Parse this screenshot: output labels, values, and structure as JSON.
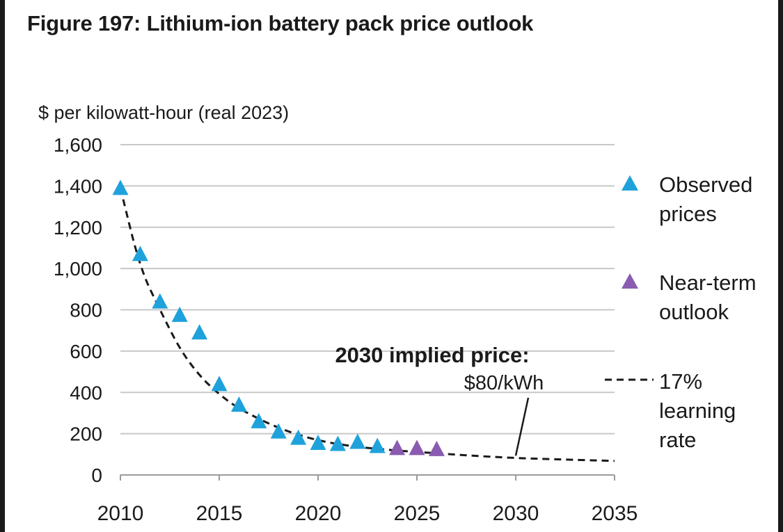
{
  "title": "Figure 197: Lithium-ion battery pack price outlook",
  "chart_data": {
    "type": "scatter",
    "ylabel": "$ per kilowatt-hour (real 2023)",
    "xlabel": "",
    "xlim": [
      2010,
      2035
    ],
    "ylim": [
      0,
      1600
    ],
    "x_ticks": [
      2010,
      2015,
      2020,
      2025,
      2030,
      2035
    ],
    "y_ticks": [
      0,
      200,
      400,
      600,
      800,
      1000,
      1200,
      1400,
      1600
    ],
    "y_tick_labels": [
      "0",
      "200",
      "400",
      "600",
      "800",
      "1,000",
      "1,200",
      "1,400",
      "1,600"
    ],
    "grid": "horizontal",
    "legend_position": "right",
    "series": [
      {
        "name": "Observed prices",
        "legend_lines": [
          "Observed",
          "prices"
        ],
        "marker": "triangle",
        "color": "#1fa2dc",
        "x": [
          2010,
          2011,
          2012,
          2013,
          2014,
          2015,
          2016,
          2017,
          2018,
          2019,
          2020,
          2021,
          2022,
          2023
        ],
        "y": [
          1390,
          1070,
          840,
          775,
          690,
          440,
          340,
          260,
          210,
          180,
          155,
          150,
          160,
          140
        ]
      },
      {
        "name": "Near-term outlook",
        "legend_lines": [
          "Near-term",
          "outlook"
        ],
        "marker": "triangle",
        "color": "#8a5bb0",
        "x": [
          2024,
          2025,
          2026
        ],
        "y": [
          130,
          130,
          125
        ]
      },
      {
        "name": "17% learning rate",
        "legend_lines": [
          "17%",
          "learning",
          "rate"
        ],
        "style": "dashed",
        "color": "#1a1a1a",
        "x": [
          2010,
          2011,
          2012,
          2013,
          2014,
          2015,
          2016,
          2018,
          2020,
          2022,
          2024,
          2026,
          2028,
          2030,
          2032,
          2035
        ],
        "y": [
          1390,
          1000,
          800,
          610,
          480,
          390,
          320,
          225,
          165,
          135,
          118,
          105,
          92,
          82,
          76,
          68
        ]
      }
    ],
    "annotation": {
      "bold_text": "2030 implied price:",
      "text": "$80/kWh",
      "x": 2030,
      "y": 80
    }
  }
}
